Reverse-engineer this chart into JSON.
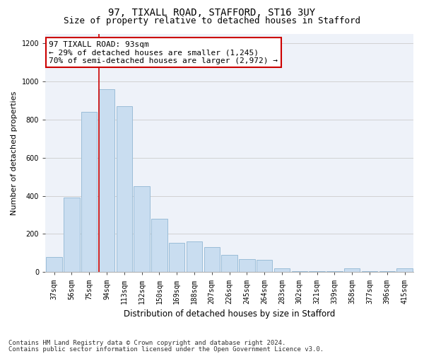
{
  "title1": "97, TIXALL ROAD, STAFFORD, ST16 3UY",
  "title2": "Size of property relative to detached houses in Stafford",
  "xlabel": "Distribution of detached houses by size in Stafford",
  "ylabel": "Number of detached properties",
  "categories": [
    "37sqm",
    "56sqm",
    "75sqm",
    "94sqm",
    "113sqm",
    "132sqm",
    "150sqm",
    "169sqm",
    "188sqm",
    "207sqm",
    "226sqm",
    "245sqm",
    "264sqm",
    "283sqm",
    "302sqm",
    "321sqm",
    "339sqm",
    "358sqm",
    "377sqm",
    "396sqm",
    "415sqm"
  ],
  "values": [
    80,
    390,
    840,
    960,
    870,
    450,
    280,
    155,
    160,
    130,
    90,
    70,
    65,
    20,
    5,
    5,
    5,
    20,
    5,
    5,
    20
  ],
  "bar_color": "#c9ddf0",
  "bar_edge_color": "#9bbdd8",
  "highlight_line_index": 3,
  "annotation_line1": "97 TIXALL ROAD: 93sqm",
  "annotation_line2": "← 29% of detached houses are smaller (1,245)",
  "annotation_line3": "70% of semi-detached houses are larger (2,972) →",
  "annotation_box_facecolor": "#ffffff",
  "annotation_box_edgecolor": "#cc0000",
  "ylim": [
    0,
    1250
  ],
  "yticks": [
    0,
    200,
    400,
    600,
    800,
    1000,
    1200
  ],
  "grid_color": "#cccccc",
  "background_color": "#eef2f9",
  "footer1": "Contains HM Land Registry data © Crown copyright and database right 2024.",
  "footer2": "Contains public sector information licensed under the Open Government Licence v3.0.",
  "title1_fontsize": 10,
  "title2_fontsize": 9,
  "ylabel_fontsize": 8,
  "xlabel_fontsize": 8.5,
  "tick_fontsize": 7,
  "annotation_fontsize": 8,
  "footer_fontsize": 6.5
}
